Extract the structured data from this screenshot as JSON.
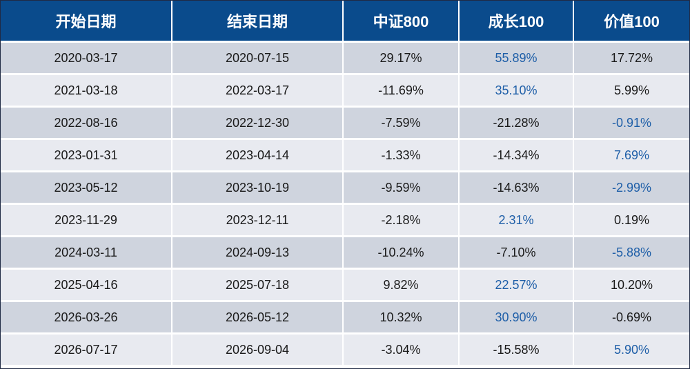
{
  "chart_data": {
    "type": "table",
    "columns": [
      "开始日期",
      "结束日期",
      "中证800",
      "成长100",
      "价值100"
    ],
    "rows": [
      {
        "start": "2020-03-17",
        "end": "2020-07-15",
        "csi800": "29.17%",
        "growth100": "55.89%",
        "value100": "17.72%",
        "hl": "growth100"
      },
      {
        "start": "2021-03-18",
        "end": "2022-03-17",
        "csi800": "-11.69%",
        "growth100": "35.10%",
        "value100": "5.99%",
        "hl": "growth100"
      },
      {
        "start": "2022-08-16",
        "end": "2022-12-30",
        "csi800": "-7.59%",
        "growth100": "-21.28%",
        "value100": "-0.91%",
        "hl": "value100"
      },
      {
        "start": "2023-01-31",
        "end": "2023-04-14",
        "csi800": "-1.33%",
        "growth100": "-14.34%",
        "value100": "7.69%",
        "hl": "value100"
      },
      {
        "start": "2023-05-12",
        "end": "2023-10-19",
        "csi800": "-9.59%",
        "growth100": "-14.63%",
        "value100": "-2.99%",
        "hl": "value100"
      },
      {
        "start": "2023-11-29",
        "end": "2023-12-11",
        "csi800": "-2.18%",
        "growth100": "2.31%",
        "value100": "0.19%",
        "hl": "growth100"
      },
      {
        "start": "2024-03-11",
        "end": "2024-09-13",
        "csi800": "-10.24%",
        "growth100": "-7.10%",
        "value100": "-5.88%",
        "hl": "value100"
      },
      {
        "start": "2025-04-16",
        "end": "2025-07-18",
        "csi800": "9.82%",
        "growth100": "22.57%",
        "value100": "10.20%",
        "hl": "growth100"
      },
      {
        "start": "2026-03-26",
        "end": "2026-05-12",
        "csi800": "10.32%",
        "growth100": "30.90%",
        "value100": "-0.69%",
        "hl": "growth100"
      },
      {
        "start": "2026-07-17",
        "end": "2026-09-04",
        "csi800": "-3.04%",
        "growth100": "-15.58%",
        "value100": "5.90%",
        "hl": "value100"
      }
    ]
  },
  "colors": {
    "header_bg": "#0a4b8c",
    "header_text": "#ffffff",
    "row_odd": "#cfd4de",
    "row_even": "#e8eaf0",
    "highlight_text": "#1f5fa8",
    "body_text": "#1a1a1a"
  }
}
